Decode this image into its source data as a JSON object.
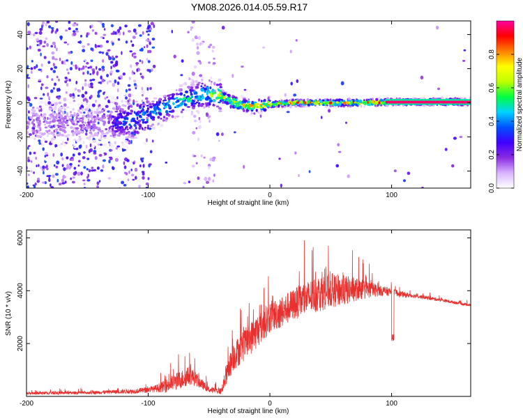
{
  "title": "YM08.2026.014.05.59.R17",
  "chart_data": [
    {
      "type": "heatmap",
      "xlabel": "Height of straight line (km)",
      "ylabel": "Frequency (Hz)",
      "xlim": [
        -200,
        165
      ],
      "ylim": [
        -50,
        48
      ],
      "x_ticks": [
        -200,
        -100,
        0,
        100
      ],
      "y_ticks": [
        -40,
        -20,
        0,
        20,
        40
      ],
      "colorbar": {
        "label": "Normalized spectral amplitude",
        "range": [
          0,
          1
        ],
        "ticks": [
          "0.0",
          "0.2",
          "0.4",
          "0.6",
          "0.8"
        ],
        "tick_values": [
          0.0,
          0.2,
          0.4,
          0.6,
          0.8
        ],
        "colors": [
          "#ffffff",
          "#d9b3ff",
          "#8a2be2",
          "#4000ff",
          "#0050ff",
          "#00d4ff",
          "#00ff40",
          "#c0ff00",
          "#ffff00",
          "#ff8000",
          "#ff0000",
          "#ff00a0"
        ]
      },
      "ridge": {
        "x": [
          -200,
          -150,
          -130,
          -110,
          -90,
          -70,
          -55,
          -45,
          -35,
          -25,
          -15,
          0,
          20,
          50,
          80,
          100,
          165
        ],
        "freq": [
          -12,
          -12,
          -12,
          -10,
          -4,
          2,
          5,
          5,
          2,
          -1,
          -2,
          -1,
          0,
          0,
          0,
          0.5,
          0.5
        ],
        "intensity": [
          0.3,
          0.3,
          0.35,
          0.45,
          0.5,
          0.55,
          0.55,
          0.7,
          0.75,
          0.8,
          0.85,
          0.85,
          0.9,
          0.92,
          0.95,
          0.97,
          0.97
        ]
      }
    },
    {
      "type": "line",
      "xlabel": "Height of straight line (km)",
      "ylabel": "SNR (10 * v/v)",
      "xlim": [
        -200,
        165
      ],
      "ylim": [
        0,
        6300
      ],
      "x_ticks": [
        -200,
        -100,
        0,
        100
      ],
      "y_ticks": [
        2000,
        4000,
        6000
      ],
      "color": "#e8312f",
      "envelope": {
        "x": [
          -200,
          -150,
          -110,
          -95,
          -85,
          -75,
          -65,
          -57,
          -50,
          -40,
          -35,
          -30,
          -20,
          -10,
          0,
          10,
          20,
          30,
          40,
          50,
          60,
          70,
          80,
          90,
          100,
          110,
          120,
          140,
          165
        ],
        "base": [
          120,
          140,
          200,
          280,
          400,
          600,
          800,
          500,
          250,
          200,
          900,
          1500,
          2000,
          2500,
          3000,
          3200,
          3500,
          3700,
          3900,
          4000,
          4000,
          4050,
          4050,
          4000,
          3950,
          3850,
          3800,
          3650,
          3450
        ],
        "amp": [
          100,
          110,
          180,
          250,
          500,
          700,
          700,
          400,
          200,
          250,
          800,
          1100,
          1200,
          1300,
          1200,
          1200,
          1200,
          1300,
          1400,
          1300,
          1200,
          900,
          700,
          400,
          300,
          200,
          150,
          120,
          100
        ]
      }
    }
  ]
}
